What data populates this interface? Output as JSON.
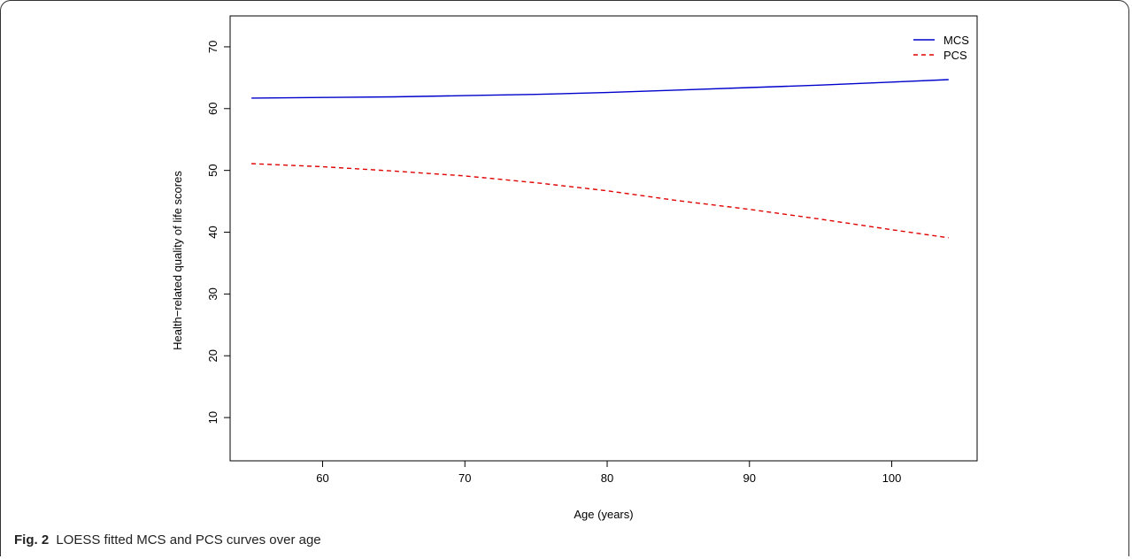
{
  "figure": {
    "caption_lead": "Fig. 2",
    "caption_text": "LOESS fitted MCS and PCS curves over age"
  },
  "chart_data": {
    "type": "line",
    "title": "",
    "xlabel": "Age (years)",
    "ylabel": "Health−related quality of life scores",
    "xlim": [
      53.5,
      106
    ],
    "ylim": [
      3,
      75
    ],
    "xticks": [
      60,
      70,
      80,
      90,
      100
    ],
    "yticks": [
      10,
      20,
      30,
      40,
      50,
      60,
      70
    ],
    "grid": false,
    "legend_position": "top-right",
    "series": [
      {
        "name": "MCS",
        "color": "#0000cc",
        "style": "solid",
        "x": [
          55,
          60,
          65,
          70,
          75,
          80,
          85,
          90,
          95,
          100,
          104
        ],
        "y": [
          61.7,
          61.8,
          61.9,
          62.1,
          62.3,
          62.6,
          63.0,
          63.4,
          63.8,
          64.3,
          64.7
        ]
      },
      {
        "name": "PCS",
        "color": "#e00000",
        "style": "dashed",
        "x": [
          55,
          60,
          65,
          70,
          75,
          80,
          85,
          90,
          95,
          100,
          104
        ],
        "y": [
          51.1,
          50.6,
          49.9,
          49.1,
          48.0,
          46.7,
          45.1,
          43.7,
          42.1,
          40.4,
          39.1
        ]
      }
    ]
  }
}
